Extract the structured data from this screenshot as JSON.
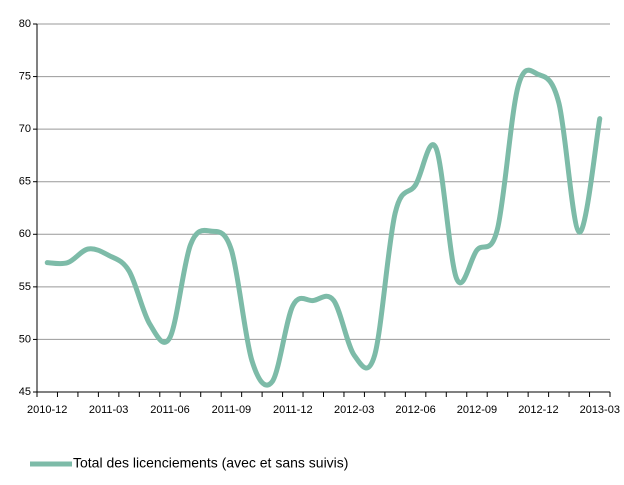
{
  "chart_data": {
    "type": "line",
    "categories": [
      "2010-12",
      null,
      null,
      "2011-03",
      null,
      null,
      "2011-06",
      null,
      null,
      "2011-09",
      null,
      null,
      "2011-12",
      null,
      null,
      "2012-03",
      null,
      null,
      "2012-06",
      null,
      null,
      "2012-09",
      null,
      null,
      "2012-12",
      null,
      null,
      "2013-03"
    ],
    "series": [
      {
        "name": "Total des licenciements (avec et sans suivis)",
        "color": "#7dbba8",
        "values": [
          57.3,
          57.3,
          58.6,
          58.0,
          56.5,
          51.5,
          50.2,
          59.0,
          60.3,
          58.5,
          48.0,
          46.0,
          53.2,
          53.7,
          53.7,
          48.5,
          48.5,
          62.0,
          64.7,
          68.2,
          55.8,
          58.5,
          60.5,
          74.0,
          75.2,
          72.5,
          60.2,
          71.0
        ]
      }
    ],
    "ylim": [
      45,
      80
    ],
    "yticks": [
      45,
      50,
      55,
      60,
      65,
      70,
      75,
      80
    ],
    "grid": true,
    "legend": "bottom"
  }
}
